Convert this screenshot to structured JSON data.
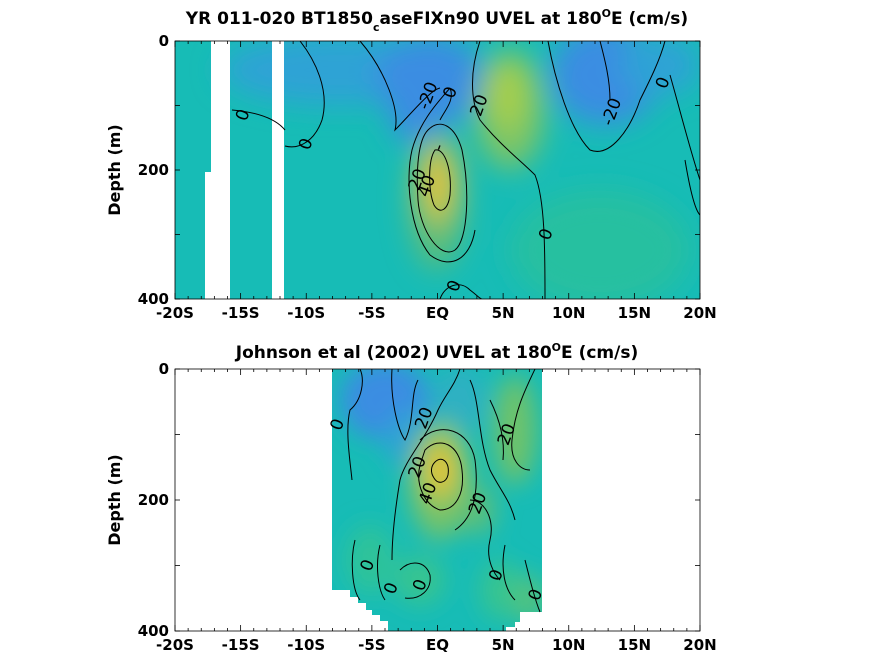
{
  "chart_data": [
    {
      "type": "heatmap",
      "title_parts": {
        "pre": "YR 011-020 BT1850",
        "sub": "c",
        "post1": "aseFIXn90 UVEL at 180",
        "sup": "O",
        "post2": "E (cm/s)"
      },
      "ylabel": "Depth (m)",
      "x_ticks": [
        "-20S",
        "-15S",
        "-10S",
        "-5S",
        "EQ",
        "5N",
        "10N",
        "15N",
        "20N"
      ],
      "y_ticks": [
        "0",
        "200",
        "400"
      ],
      "xlim": [
        -20,
        20
      ],
      "ylim": [
        0,
        400
      ],
      "colors": {
        "background": "#17bcb6",
        "westward": "#3a8de2",
        "eastward_weak": "#8ccb5c",
        "eastward_strong": "#f0c232"
      },
      "features": [
        {
          "kind": "eastward",
          "lat": 0.3,
          "depth": 190,
          "value": 45
        },
        {
          "kind": "eastward",
          "lat": 5,
          "depth": 90,
          "value": 25
        },
        {
          "kind": "westward",
          "lat": 1,
          "depth": 30,
          "value": -25
        },
        {
          "kind": "westward",
          "lat": 11,
          "depth": 50,
          "value": -25
        }
      ],
      "contour_labels": [
        {
          "text": "-20",
          "lat": -0.7,
          "depth": 85
        },
        {
          "text": "0",
          "lat": 1,
          "depth": 80
        },
        {
          "text": "20",
          "lat": 3.2,
          "depth": 100
        },
        {
          "text": "-20",
          "lat": 13.3,
          "depth": 110
        },
        {
          "text": "0",
          "lat": 17.2,
          "depth": 65
        },
        {
          "text": "0",
          "lat": -14.8,
          "depth": 115
        },
        {
          "text": "0",
          "lat": -10,
          "depth": 160
        },
        {
          "text": "-",
          "lat": 0.1,
          "depth": 165
        },
        {
          "text": "40",
          "lat": -0.8,
          "depth": 225
        },
        {
          "text": "20",
          "lat": -1.5,
          "depth": 215
        },
        {
          "text": "0",
          "lat": 8.3,
          "depth": 300
        },
        {
          "text": "0",
          "lat": 1.3,
          "depth": 380
        }
      ],
      "missing_bands": [
        [
          -17.3,
          -15.7
        ],
        [
          -12.6,
          -11.9
        ]
      ]
    },
    {
      "type": "heatmap",
      "title_parts": {
        "pre": "Johnson et al (2002) UVEL at 180",
        "sup": "O",
        "post2": "E (cm/s)"
      },
      "ylabel": "Depth (m)",
      "x_ticks": [
        "-20S",
        "-15S",
        "-10S",
        "-5S",
        "EQ",
        "5N",
        "10N",
        "15N",
        "20N"
      ],
      "y_ticks": [
        "0",
        "200",
        "400"
      ],
      "xlim": [
        -20,
        20
      ],
      "ylim": [
        0,
        400
      ],
      "data_extent_lat": [
        -8,
        8
      ],
      "colors": {
        "background": "#17bcb6",
        "westward": "#3a8de2",
        "eastward_weak": "#8ccb5c",
        "eastward_strong": "#f0c232"
      },
      "features": [
        {
          "kind": "eastward",
          "lat": 0.5,
          "depth": 170,
          "value": 45
        },
        {
          "kind": "eastward",
          "lat": 6,
          "depth": 80,
          "value": 25
        },
        {
          "kind": "westward",
          "lat": -3,
          "depth": 50,
          "value": -25
        }
      ],
      "contour_labels": [
        {
          "text": "0",
          "lat": -7.6,
          "depth": 85
        },
        {
          "text": "20",
          "lat": -1,
          "depth": 75
        },
        {
          "text": "20",
          "lat": 5.3,
          "depth": 100
        },
        {
          "text": "20",
          "lat": -1.5,
          "depth": 150
        },
        {
          "text": "40",
          "lat": -0.7,
          "depth": 190
        },
        {
          "text": "20",
          "lat": 3.1,
          "depth": 205
        },
        {
          "text": "0",
          "lat": -5.3,
          "depth": 300
        },
        {
          "text": "0",
          "lat": 4.5,
          "depth": 315
        },
        {
          "text": "0",
          "lat": -3.5,
          "depth": 335
        },
        {
          "text": "0",
          "lat": -1.3,
          "depth": 330
        },
        {
          "text": "0",
          "lat": 7.5,
          "depth": 345
        }
      ]
    }
  ]
}
